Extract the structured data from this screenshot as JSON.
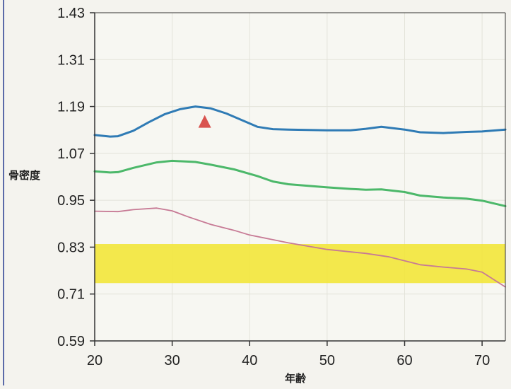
{
  "chart_data": {
    "type": "line",
    "xlabel": "年齢",
    "ylabel": "骨密度",
    "xlim": [
      20,
      73
    ],
    "ylim": [
      0.59,
      1.43
    ],
    "x_ticks": [
      20,
      30,
      40,
      50,
      60,
      70
    ],
    "y_ticks": [
      0.59,
      0.71,
      0.83,
      0.95,
      1.07,
      1.19,
      1.31,
      1.43
    ],
    "y_tick_labels": [
      "0.59",
      "0.71",
      "0.83",
      "0.95",
      "1.07",
      "1.19",
      "1.31",
      "1.43"
    ],
    "grid": true,
    "band": {
      "y_from": 0.738,
      "y_to": 0.838,
      "color": "#f2e63a"
    },
    "marker": {
      "x": 34.2,
      "y": 1.15,
      "shape": "triangle",
      "color": "#d9534f"
    },
    "series": [
      {
        "color": "#2f7bb5",
        "x": [
          20,
          22,
          23,
          25,
          27,
          29,
          31,
          33,
          35,
          37,
          39,
          41,
          43,
          45,
          50,
          53,
          55,
          57,
          60,
          62,
          65,
          68,
          70,
          73
        ],
        "y": [
          1.117,
          1.113,
          1.114,
          1.128,
          1.15,
          1.17,
          1.183,
          1.19,
          1.185,
          1.172,
          1.155,
          1.138,
          1.132,
          1.131,
          1.129,
          1.129,
          1.133,
          1.138,
          1.131,
          1.124,
          1.122,
          1.125,
          1.126,
          1.131
        ]
      },
      {
        "color": "#4cb86a",
        "x": [
          20,
          22,
          23,
          25,
          28,
          30,
          33,
          35,
          38,
          41,
          43,
          45,
          50,
          53,
          55,
          57,
          60,
          62,
          65,
          68,
          70,
          73
        ],
        "y": [
          1.024,
          1.021,
          1.022,
          1.033,
          1.047,
          1.051,
          1.048,
          1.041,
          1.029,
          1.012,
          0.998,
          0.991,
          0.983,
          0.979,
          0.977,
          0.978,
          0.971,
          0.962,
          0.957,
          0.954,
          0.949,
          0.935
        ]
      },
      {
        "color": "#c77a95",
        "x": [
          20,
          23,
          25,
          28,
          30,
          32,
          35,
          38,
          40,
          43,
          45,
          50,
          55,
          58,
          60,
          62,
          65,
          68,
          70,
          73
        ],
        "y": [
          0.922,
          0.921,
          0.926,
          0.93,
          0.923,
          0.908,
          0.888,
          0.873,
          0.861,
          0.849,
          0.841,
          0.824,
          0.814,
          0.805,
          0.795,
          0.785,
          0.779,
          0.774,
          0.766,
          0.728
        ]
      }
    ]
  }
}
